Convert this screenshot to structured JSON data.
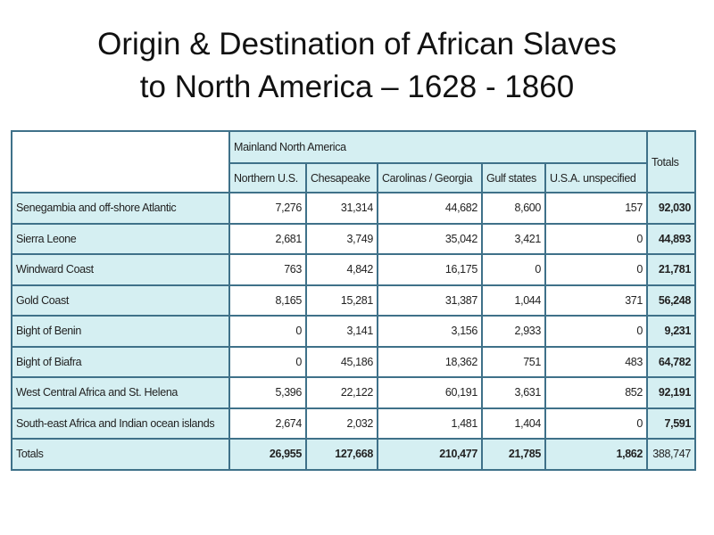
{
  "title_line1": "Origin & Destination of African Slaves",
  "title_line2": "to North America – 1628 - 1860",
  "colors": {
    "cell_fill": "#d5eff2",
    "border": "#3f7189"
  },
  "table": {
    "group_header": "Mainland North America",
    "totals_header": "Totals",
    "columns": [
      "Northern U.S.",
      "Chesapeake",
      "Carolinas / Georgia",
      "Gulf states",
      "U.S.A. unspecified"
    ],
    "rows": [
      {
        "label": "Senegambia and off-shore Atlantic",
        "values": [
          "7,276",
          "31,314",
          "44,682",
          "8,600",
          "157"
        ],
        "total": "92,030"
      },
      {
        "label": "Sierra Leone",
        "values": [
          "2,681",
          "3,749",
          "35,042",
          "3,421",
          "0"
        ],
        "total": "44,893"
      },
      {
        "label": "Windward Coast",
        "values": [
          "763",
          "4,842",
          "16,175",
          "0",
          "0"
        ],
        "total": "21,781"
      },
      {
        "label": "Gold Coast",
        "values": [
          "8,165",
          "15,281",
          "31,387",
          "1,044",
          "371"
        ],
        "total": "56,248"
      },
      {
        "label": "Bight of Benin",
        "values": [
          "0",
          "3,141",
          "3,156",
          "2,933",
          "0"
        ],
        "total": "9,231"
      },
      {
        "label": "Bight of Biafra",
        "values": [
          "0",
          "45,186",
          "18,362",
          "751",
          "483"
        ],
        "total": "64,782"
      },
      {
        "label": "West Central Africa and St. Helena",
        "values": [
          "5,396",
          "22,122",
          "60,191",
          "3,631",
          "852"
        ],
        "total": "92,191"
      },
      {
        "label": "South-east Africa and Indian ocean islands",
        "values": [
          "2,674",
          "2,032",
          "1,481",
          "1,404",
          "0"
        ],
        "total": "7,591"
      }
    ],
    "totals_row": {
      "label": "Totals",
      "values": [
        "26,955",
        "127,668",
        "210,477",
        "21,785",
        "1,862"
      ],
      "total": "388,747"
    }
  }
}
